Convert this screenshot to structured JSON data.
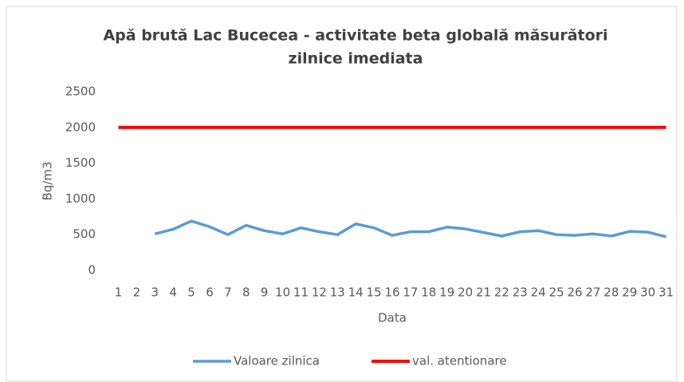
{
  "chart_data": {
    "type": "line",
    "title": [
      "Apă brută Lac Bucecea - activitate beta globală măsurători",
      "zilnice imediata"
    ],
    "x_label": "Data",
    "y_label": "Bq/m3",
    "categories": [
      "1",
      "2",
      "3",
      "4",
      "5",
      "6",
      "7",
      "8",
      "9",
      "10",
      "11",
      "12",
      "13",
      "14",
      "15",
      "16",
      "17",
      "18",
      "19",
      "20",
      "21",
      "22",
      "23",
      "24",
      "25",
      "26",
      "27",
      "28",
      "29",
      "30",
      "31"
    ],
    "series": [
      {
        "name": "Valoare zilnica",
        "color": "#5b9bd5",
        "values": [
          null,
          null,
          510,
          575,
          690,
          610,
          500,
          630,
          555,
          510,
          595,
          540,
          500,
          650,
          595,
          490,
          540,
          540,
          605,
          580,
          530,
          480,
          540,
          555,
          500,
          490,
          510,
          480,
          545,
          535,
          470
        ]
      },
      {
        "name": "val. atentionare",
        "color": "#ff0000",
        "values": [
          2000,
          2000,
          2000,
          2000,
          2000,
          2000,
          2000,
          2000,
          2000,
          2000,
          2000,
          2000,
          2000,
          2000,
          2000,
          2000,
          2000,
          2000,
          2000,
          2000,
          2000,
          2000,
          2000,
          2000,
          2000,
          2000,
          2000,
          2000,
          2000,
          2000,
          2000
        ]
      }
    ],
    "ylim": [
      0,
      2500
    ],
    "yticks": [
      0,
      500,
      1000,
      1500,
      2000,
      2500
    ],
    "grid": false,
    "legend": "bottom"
  }
}
